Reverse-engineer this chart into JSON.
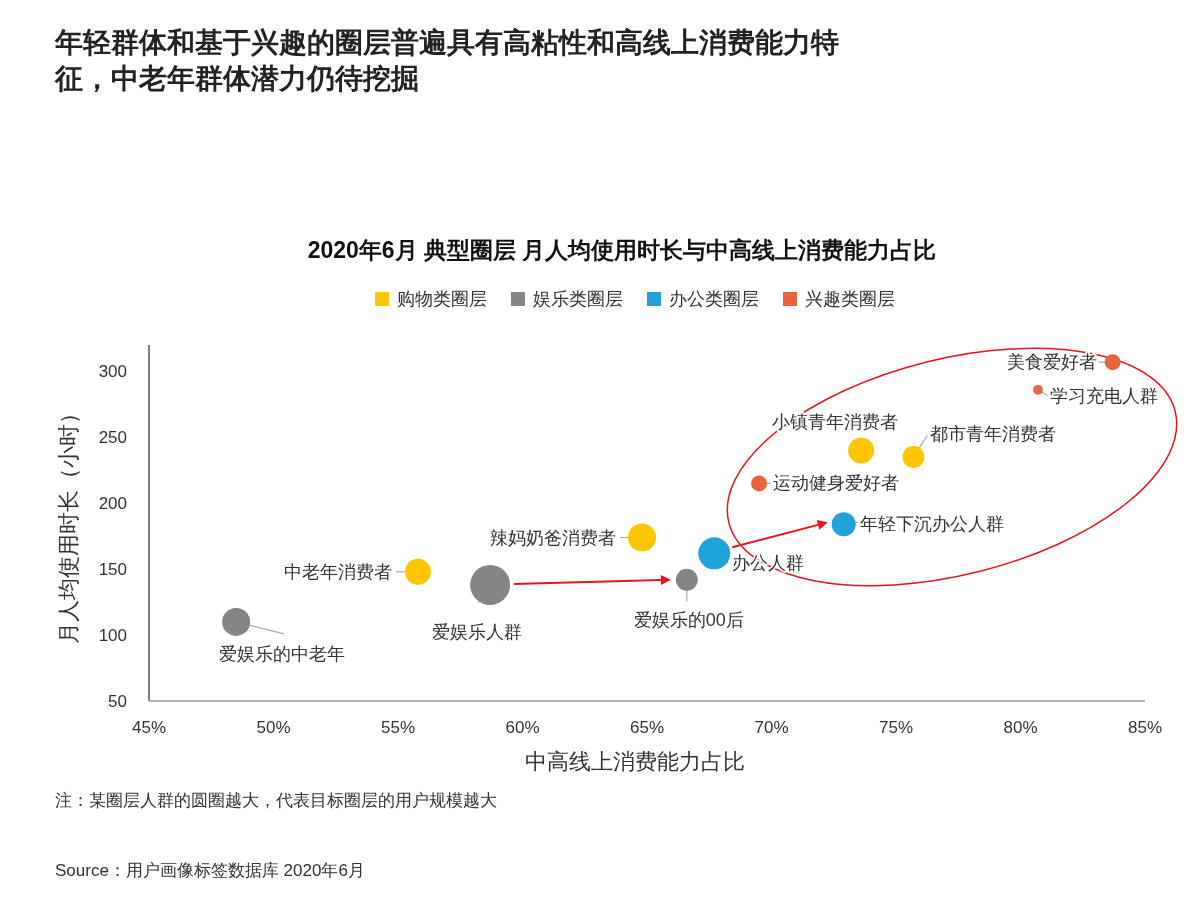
{
  "chart_data": {
    "type": "bubble",
    "title": "年轻群体和基于兴趣的圈层普遍具有高粘性和高线上消费能力特征，中老年群体潜力仍待挖掘",
    "subtitle": "2020年6月 典型圈层 月人均使用时长与中高线上消费能力占比",
    "xlabel": "中高线上消费能力占比",
    "ylabel": "月人均使用时长（小时）",
    "legend": "top",
    "xlim": [
      45,
      85
    ],
    "xticks": [
      {
        "value": 45,
        "label": "45%"
      },
      {
        "value": 50,
        "label": "50%"
      },
      {
        "value": 55,
        "label": "55%"
      },
      {
        "value": 60,
        "label": "60%"
      },
      {
        "value": 65,
        "label": "65%"
      },
      {
        "value": 70,
        "label": "70%"
      },
      {
        "value": 75,
        "label": "75%"
      },
      {
        "value": 80,
        "label": "80%"
      },
      {
        "value": 85,
        "label": "85%"
      }
    ],
    "ylim": [
      50,
      320
    ],
    "yticks": [
      50,
      100,
      150,
      200,
      250,
      300
    ],
    "series": [
      {
        "name": "购物类圈层",
        "color": "#ffc600",
        "x": [
          55.8,
          64.8,
          73.6,
          75.7
        ],
        "values": [
          148,
          174,
          240,
          235
        ],
        "sizes": [
          0.42,
          0.49,
          0.42,
          0.3
        ]
      },
      {
        "name": "娱乐类圈层",
        "color": "#858585",
        "x": [
          48.5,
          58.7,
          66.6
        ],
        "values": [
          110,
          138,
          142
        ],
        "sizes": [
          0.49,
          1,
          0.3
        ]
      },
      {
        "name": "办公类圈层",
        "color": "#1fa3d8",
        "x": [
          67.7,
          72.9
        ],
        "values": [
          162,
          184
        ],
        "sizes": [
          0.64,
          0.36
        ]
      },
      {
        "name": "兴趣类圈层",
        "color": "#e8643c",
        "x": [
          69.5,
          83.7,
          80.7
        ],
        "values": [
          215,
          307,
          286
        ],
        "sizes": [
          0.16,
          0.16,
          0.06
        ]
      }
    ],
    "annotations": [
      {
        "text": "中老年消费者",
        "x": 55.8,
        "y": 148
      },
      {
        "text": "辣妈奶爸消费者",
        "x": 64.8,
        "y": 174
      },
      {
        "text": "小镇青年消费者",
        "x": 73.6,
        "y": 240
      },
      {
        "text": "都市青年消费者",
        "x": 75.7,
        "y": 235
      },
      {
        "text": "爱娱乐的中老年",
        "x": 48.5,
        "y": 110
      },
      {
        "text": "爱娱乐人群",
        "x": 58.7,
        "y": 138
      },
      {
        "text": "爱娱乐的00后",
        "x": 66.6,
        "y": 142
      },
      {
        "text": "办公人群",
        "x": 67.7,
        "y": 162
      },
      {
        "text": "年轻下沉办公人群",
        "x": 72.9,
        "y": 184
      },
      {
        "text": "运动健身爱好者",
        "x": 69.5,
        "y": 215
      },
      {
        "text": "美食爱好者",
        "x": 83.7,
        "y": 307
      },
      {
        "text": "学习充电人群",
        "x": 80.7,
        "y": 286
      },
      "注：某圈层人群的圆圈越大，代表目标圈层的用户规模越大",
      "Source：用户画像标签数据库 2020年6月"
    ]
  }
}
